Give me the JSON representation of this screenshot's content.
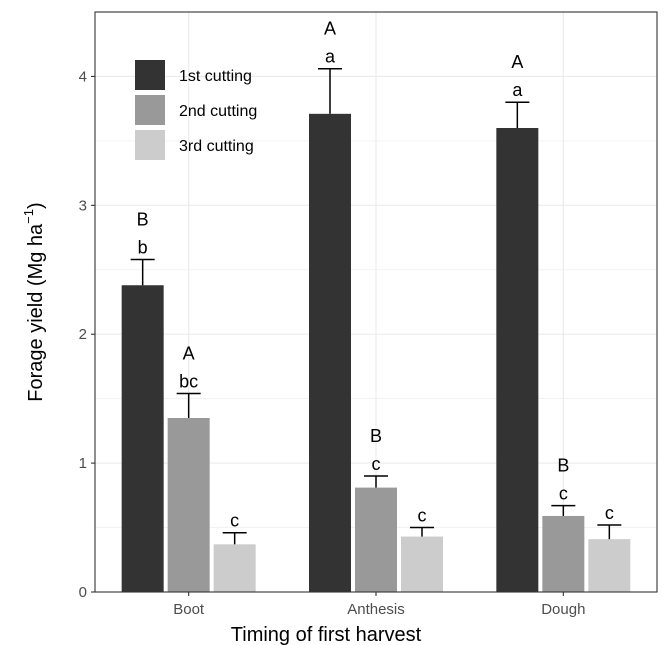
{
  "chart_data": {
    "type": "bar",
    "title": "",
    "xlabel": "Timing of first harvest",
    "ylabel": "Forage yield (Mg ha",
    "ylabel_superscript": "−1",
    "ylabel_suffix": ")",
    "categories": [
      "Boot",
      "Anthesis",
      "Dough"
    ],
    "ylim": [
      0,
      4.5
    ],
    "yticks": [
      "0",
      "1",
      "2",
      "3",
      "4"
    ],
    "grid": true,
    "legend_position": "top-left",
    "series": [
      {
        "name": "1st cutting",
        "color": "#333333",
        "values": [
          2.38,
          3.71,
          3.6
        ],
        "errors": [
          0.2,
          0.35,
          0.2
        ],
        "letters_lower": [
          "b",
          "a",
          "a"
        ],
        "letters_upper": [
          "B",
          "A",
          "A"
        ]
      },
      {
        "name": "2nd cutting",
        "color": "#999999",
        "values": [
          1.35,
          0.81,
          0.59
        ],
        "errors": [
          0.19,
          0.09,
          0.08
        ],
        "letters_lower": [
          "bc",
          "c",
          "c"
        ],
        "letters_upper": [
          "A",
          "B",
          "B"
        ]
      },
      {
        "name": "3rd cutting",
        "color": "#cccccc",
        "values": [
          0.37,
          0.43,
          0.41
        ],
        "errors": [
          0.09,
          0.07,
          0.11
        ],
        "letters_lower": [
          "c",
          "c",
          "c"
        ],
        "letters_upper": [
          "",
          "",
          ""
        ]
      }
    ]
  }
}
